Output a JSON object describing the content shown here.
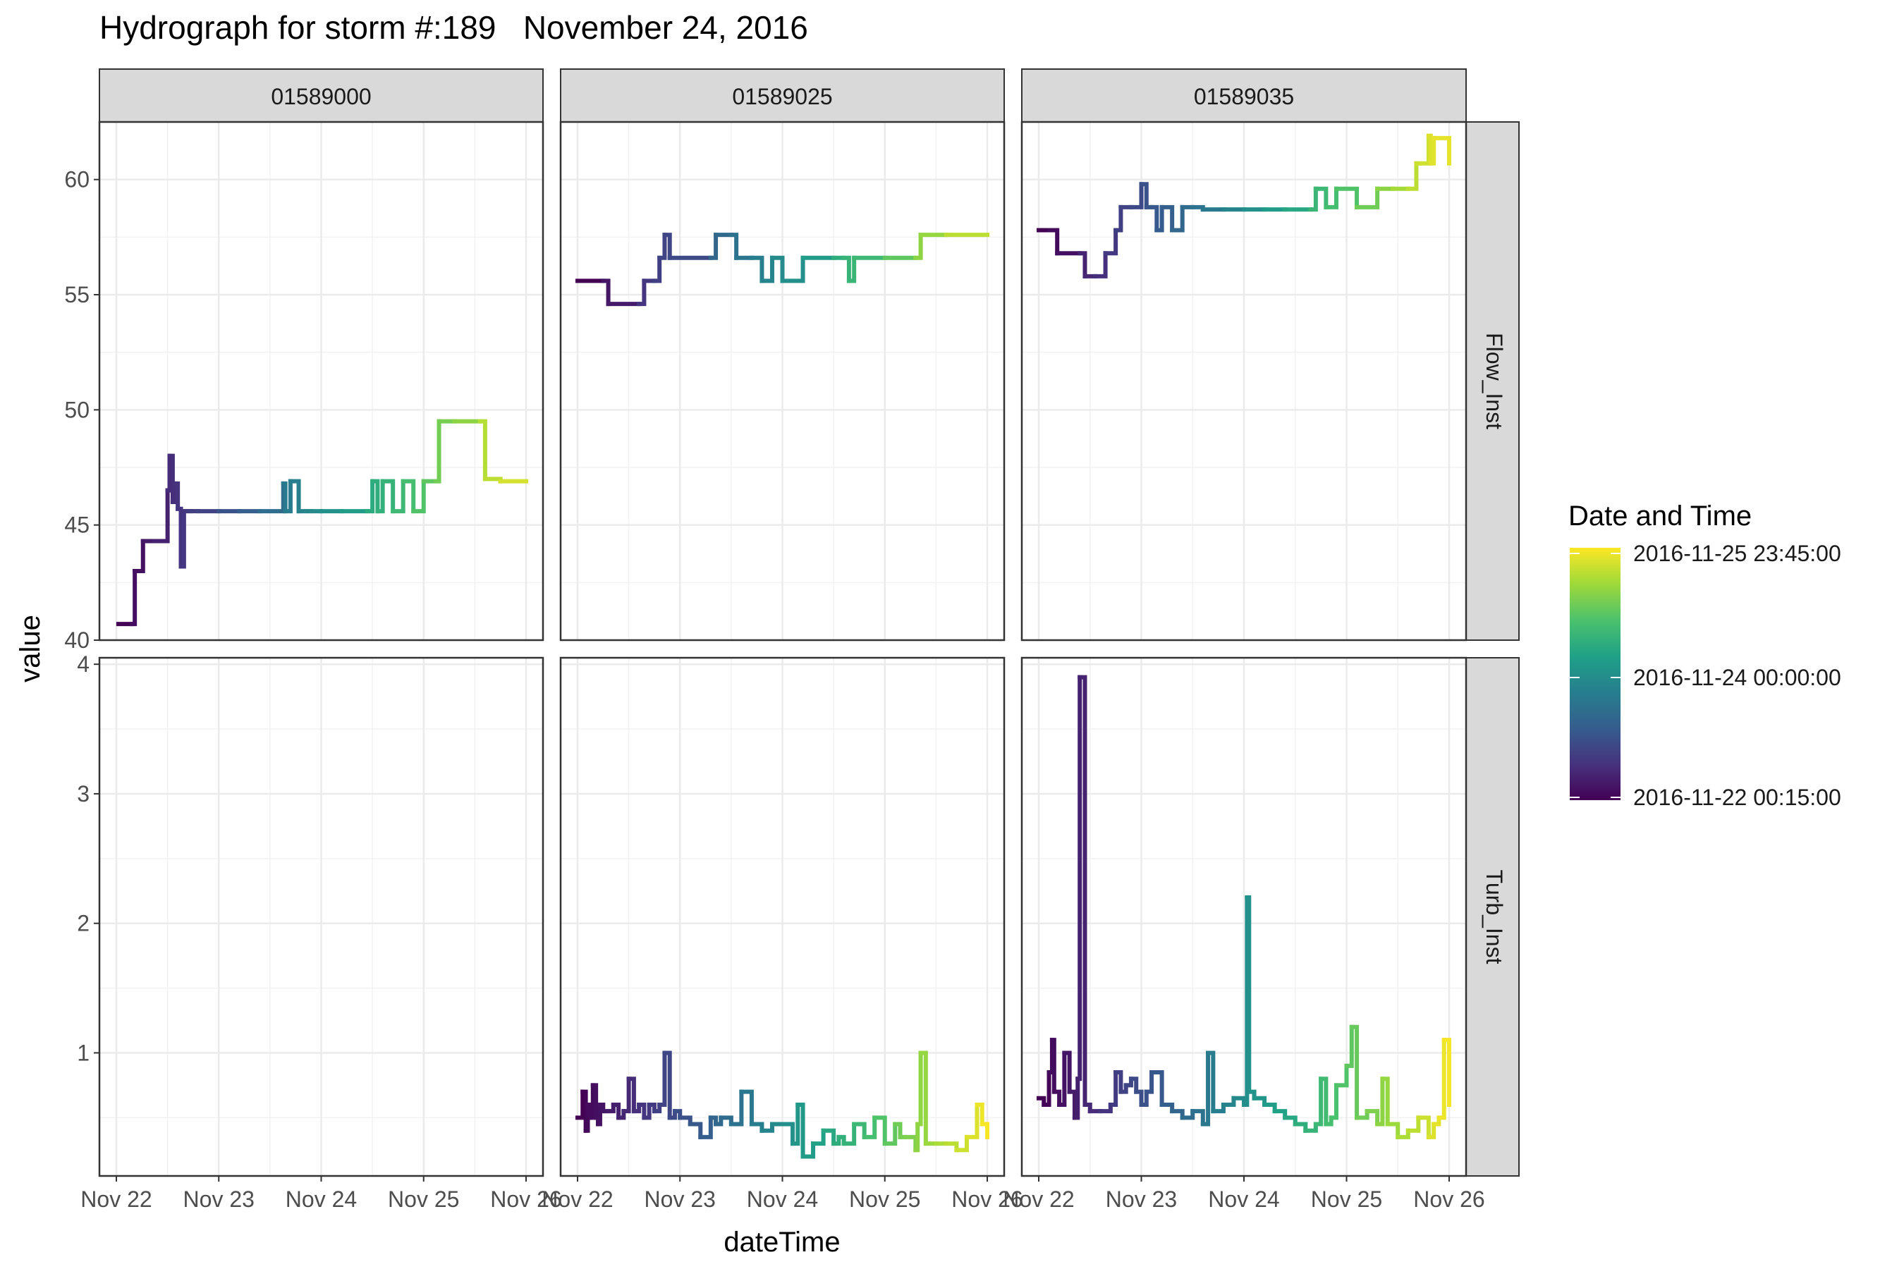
{
  "title": "Hydrograph for storm #:189   November 24, 2016",
  "chart_data": {
    "type": "line",
    "title": "Hydrograph for storm #:189   November 24, 2016",
    "xlabel": "dateTime",
    "ylabel": "value",
    "grid": true,
    "legend_position": "right",
    "legend": {
      "title": "Date and Time",
      "labels": [
        "2016-11-25 23:45:00",
        "2016-11-24 00:00:00",
        "2016-11-22 00:15:00"
      ],
      "palette": [
        "#fde725",
        "#a0da39",
        "#4ac16d",
        "#1fa187",
        "#277f8e",
        "#365c8d",
        "#46327e",
        "#440154"
      ]
    },
    "x_ticks": [
      "Nov 22",
      "Nov 23",
      "Nov 24",
      "Nov 25",
      "Nov 26"
    ],
    "xlim": [
      22,
      26
    ],
    "facet_columns": [
      "01589000",
      "01589025",
      "01589035"
    ],
    "facet_rows": [
      "Flow_Inst",
      "Turb_Inst"
    ],
    "rows": [
      {
        "name": "Flow_Inst",
        "ylim": [
          40,
          62.5
        ],
        "y_ticks": [
          40,
          45,
          50,
          55,
          60
        ]
      },
      {
        "name": "Turb_Inst",
        "ylim": [
          0.05,
          4.05
        ],
        "y_ticks": [
          1,
          2,
          3,
          4
        ]
      }
    ],
    "panels": [
      {
        "row": "Flow_Inst",
        "column": "01589000",
        "x": [
          22.02,
          22.15,
          22.18,
          22.26,
          22.3,
          22.37,
          22.5,
          22.52,
          22.55,
          22.58,
          22.6,
          22.63,
          22.66,
          22.7,
          22.72,
          22.74,
          22.8,
          23.0,
          23.2,
          23.4,
          23.63,
          23.65,
          23.7,
          23.78,
          23.85,
          23.9,
          24.0,
          24.2,
          24.45,
          24.5,
          24.55,
          24.6,
          24.7,
          24.8,
          24.9,
          25.0,
          25.12,
          25.15,
          25.3,
          25.55,
          25.6,
          25.75,
          26.0
        ],
        "y": [
          40.7,
          40.7,
          43.0,
          44.3,
          44.3,
          44.3,
          46.5,
          48.0,
          46.0,
          46.8,
          45.7,
          43.2,
          45.6,
          45.6,
          45.6,
          45.6,
          45.6,
          45.6,
          45.6,
          45.6,
          46.8,
          45.6,
          46.9,
          45.6,
          45.6,
          45.6,
          45.6,
          45.6,
          45.6,
          46.9,
          45.6,
          46.9,
          45.6,
          46.9,
          45.6,
          46.9,
          46.9,
          49.5,
          49.5,
          49.5,
          47.0,
          46.9,
          46.9
        ]
      },
      {
        "row": "Flow_Inst",
        "column": "01589025",
        "x": [
          22.0,
          22.25,
          22.3,
          22.6,
          22.65,
          22.75,
          22.8,
          22.85,
          22.9,
          23.3,
          23.35,
          23.5,
          23.55,
          23.7,
          23.8,
          23.9,
          24.0,
          24.2,
          24.5,
          24.6,
          24.65,
          24.7,
          25.0,
          25.3,
          25.35,
          25.6,
          26.0
        ],
        "y": [
          55.6,
          55.6,
          54.6,
          54.6,
          55.6,
          55.6,
          56.6,
          57.6,
          56.6,
          56.6,
          57.6,
          57.6,
          56.6,
          56.6,
          55.6,
          56.6,
          55.6,
          56.6,
          56.6,
          56.6,
          55.6,
          56.6,
          56.6,
          56.6,
          57.6,
          57.6,
          57.6
        ]
      },
      {
        "row": "Flow_Inst",
        "column": "01589035",
        "x": [
          22.0,
          22.1,
          22.18,
          22.4,
          22.45,
          22.55,
          22.65,
          22.75,
          22.8,
          22.9,
          23.0,
          23.05,
          23.1,
          23.15,
          23.2,
          23.3,
          23.4,
          23.5,
          23.6,
          23.8,
          24.0,
          24.2,
          24.4,
          24.65,
          24.7,
          24.8,
          24.9,
          25.1,
          25.3,
          25.45,
          25.6,
          25.68,
          25.72,
          25.8,
          25.82,
          25.85,
          26.0
        ],
        "y": [
          57.8,
          57.8,
          56.8,
          56.8,
          55.8,
          55.8,
          56.8,
          57.8,
          58.8,
          58.8,
          59.8,
          58.8,
          58.8,
          57.8,
          58.8,
          57.8,
          58.8,
          58.8,
          58.7,
          58.7,
          58.7,
          58.7,
          58.7,
          58.7,
          59.6,
          58.8,
          59.6,
          58.8,
          59.6,
          59.6,
          59.6,
          60.7,
          60.7,
          61.9,
          60.7,
          61.8,
          60.7
        ]
      },
      {
        "row": "Turb_Inst",
        "column": "01589000",
        "x": [],
        "y": []
      },
      {
        "row": "Turb_Inst",
        "column": "01589025",
        "x": [
          22.0,
          22.05,
          22.08,
          22.1,
          22.12,
          22.15,
          22.18,
          22.2,
          22.22,
          22.25,
          22.3,
          22.35,
          22.4,
          22.45,
          22.5,
          22.55,
          22.6,
          22.65,
          22.7,
          22.75,
          22.8,
          22.85,
          22.9,
          22.95,
          23.0,
          23.1,
          23.2,
          23.3,
          23.35,
          23.4,
          23.5,
          23.6,
          23.7,
          23.8,
          23.9,
          24.0,
          24.1,
          24.15,
          24.2,
          24.3,
          24.4,
          24.5,
          24.55,
          24.6,
          24.7,
          24.8,
          24.9,
          25.0,
          25.1,
          25.15,
          25.2,
          25.3,
          25.32,
          25.35,
          25.4,
          25.5,
          25.6,
          25.7,
          25.8,
          25.9,
          25.95,
          26.0
        ],
        "y": [
          0.5,
          0.7,
          0.4,
          0.6,
          0.5,
          0.75,
          0.5,
          0.45,
          0.6,
          0.55,
          0.55,
          0.6,
          0.5,
          0.55,
          0.8,
          0.55,
          0.6,
          0.5,
          0.6,
          0.55,
          0.6,
          1.0,
          0.5,
          0.55,
          0.5,
          0.45,
          0.35,
          0.5,
          0.45,
          0.5,
          0.45,
          0.7,
          0.45,
          0.4,
          0.45,
          0.45,
          0.3,
          0.6,
          0.2,
          0.3,
          0.4,
          0.3,
          0.35,
          0.3,
          0.45,
          0.35,
          0.5,
          0.3,
          0.45,
          0.35,
          0.35,
          0.25,
          0.45,
          1.0,
          0.3,
          0.3,
          0.3,
          0.25,
          0.35,
          0.6,
          0.45,
          0.35
        ]
      },
      {
        "row": "Turb_Inst",
        "column": "01589035",
        "x": [
          22.0,
          22.05,
          22.1,
          22.13,
          22.15,
          22.2,
          22.25,
          22.3,
          22.35,
          22.38,
          22.4,
          22.45,
          22.5,
          22.6,
          22.7,
          22.75,
          22.8,
          22.85,
          22.9,
          22.95,
          23.0,
          23.05,
          23.1,
          23.2,
          23.3,
          23.4,
          23.5,
          23.6,
          23.65,
          23.7,
          23.8,
          23.9,
          24.0,
          24.03,
          24.05,
          24.1,
          24.2,
          24.3,
          24.4,
          24.5,
          24.6,
          24.7,
          24.75,
          24.8,
          24.85,
          24.9,
          25.0,
          25.05,
          25.1,
          25.2,
          25.3,
          25.35,
          25.4,
          25.5,
          25.6,
          25.7,
          25.8,
          25.85,
          25.9,
          25.95,
          26.0
        ],
        "y": [
          0.65,
          0.6,
          0.85,
          1.1,
          0.7,
          0.6,
          1.0,
          0.7,
          0.5,
          0.8,
          3.9,
          0.6,
          0.55,
          0.55,
          0.6,
          0.85,
          0.7,
          0.75,
          0.8,
          0.7,
          0.6,
          0.7,
          0.85,
          0.6,
          0.55,
          0.5,
          0.55,
          0.45,
          1.0,
          0.55,
          0.6,
          0.65,
          0.6,
          2.2,
          0.7,
          0.65,
          0.6,
          0.55,
          0.5,
          0.45,
          0.4,
          0.45,
          0.8,
          0.45,
          0.5,
          0.75,
          0.9,
          1.2,
          0.5,
          0.55,
          0.45,
          0.8,
          0.45,
          0.35,
          0.4,
          0.5,
          0.35,
          0.45,
          0.5,
          1.1,
          0.6
        ]
      }
    ]
  }
}
